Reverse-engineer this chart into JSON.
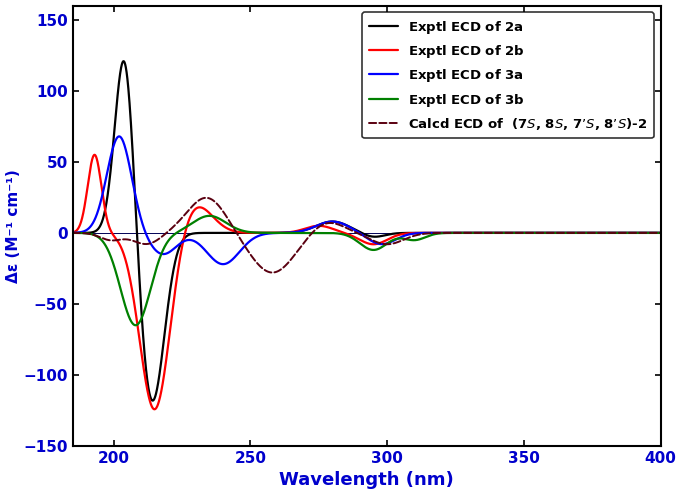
{
  "xlim": [
    185,
    400
  ],
  "ylim": [
    -150,
    160
  ],
  "xlabel": "Wavelength (nm)",
  "ylabel": "Δε (M⁻¹ cm⁻¹)",
  "yticks": [
    -150,
    -100,
    -50,
    0,
    50,
    100,
    150
  ],
  "xticks": [
    200,
    250,
    300,
    350,
    400
  ],
  "legend_entries": [
    "Exptl ECD of 2a",
    "Exptl ECD of 2b",
    "Exptl ECD of 3a",
    "Exptl ECD of 3b",
    "Calcd ECD of  (7S, 8S, 7’S, 8’S)-2"
  ],
  "line_colors": [
    "#000000",
    "#ff0000",
    "#0000ff",
    "#008000",
    "#5a0010"
  ],
  "line_styles": [
    "-",
    "-",
    "-",
    "-",
    "--"
  ],
  "line_widths": [
    1.6,
    1.6,
    1.6,
    1.6,
    1.4
  ],
  "background_color": "#ffffff"
}
